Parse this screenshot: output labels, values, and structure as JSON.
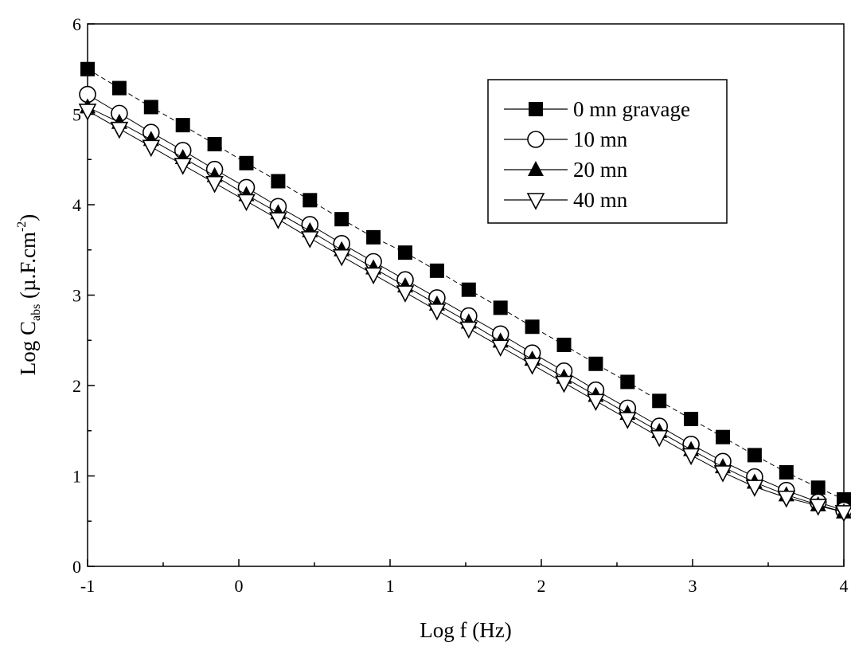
{
  "chart_data": {
    "type": "scatter",
    "xlabel": "Log f (Hz)",
    "ylabel": {
      "prefix": "Log C",
      "subscript": "abs",
      "unit_open": " (µ.F.cm",
      "superscript": "-2",
      "unit_close": ")"
    },
    "xlim": [
      -1,
      4
    ],
    "ylim": [
      0,
      6
    ],
    "x_ticks": [
      -1,
      0,
      1,
      2,
      3,
      4
    ],
    "x_tick_labels": [
      "-1",
      "0",
      "1",
      "2",
      "3",
      "4"
    ],
    "y_ticks": [
      0,
      1,
      2,
      3,
      4,
      5,
      6
    ],
    "y_tick_labels": [
      "0",
      "1",
      "2",
      "3",
      "4",
      "5",
      "6"
    ],
    "grid": false,
    "legend_position": "top-right",
    "x": [
      -1.0,
      -0.79,
      -0.58,
      -0.37,
      -0.16,
      0.05,
      0.26,
      0.47,
      0.68,
      0.89,
      1.1,
      1.31,
      1.52,
      1.73,
      1.94,
      2.15,
      2.36,
      2.57,
      2.78,
      2.99,
      3.2,
      3.41,
      3.62,
      3.83,
      4.0
    ],
    "series": [
      {
        "name": "0 mn gravage",
        "marker": "filled-square",
        "values": [
          5.5,
          5.29,
          5.08,
          4.88,
          4.67,
          4.46,
          4.26,
          4.05,
          3.84,
          3.64,
          3.47,
          3.27,
          3.06,
          2.86,
          2.65,
          2.45,
          2.24,
          2.04,
          1.83,
          1.63,
          1.43,
          1.23,
          1.04,
          0.87,
          0.74
        ]
      },
      {
        "name": "10 mn",
        "marker": "open-circle",
        "values": [
          5.22,
          5.01,
          4.8,
          4.6,
          4.39,
          4.19,
          3.98,
          3.78,
          3.57,
          3.37,
          3.17,
          2.97,
          2.77,
          2.57,
          2.36,
          2.16,
          1.95,
          1.75,
          1.55,
          1.35,
          1.16,
          0.99,
          0.84,
          0.71,
          0.62
        ]
      },
      {
        "name": "20 mn",
        "marker": "filled-triangle-up",
        "values": [
          5.08,
          4.91,
          4.72,
          4.52,
          4.32,
          4.11,
          3.91,
          3.71,
          3.5,
          3.3,
          3.1,
          2.9,
          2.7,
          2.49,
          2.29,
          2.09,
          1.89,
          1.69,
          1.49,
          1.29,
          1.1,
          0.93,
          0.79,
          0.68,
          0.6
        ]
      },
      {
        "name": "40 mn",
        "marker": "open-triangle-down",
        "values": [
          5.04,
          4.84,
          4.64,
          4.44,
          4.24,
          4.04,
          3.84,
          3.63,
          3.43,
          3.23,
          3.03,
          2.83,
          2.63,
          2.43,
          2.23,
          2.03,
          1.83,
          1.63,
          1.43,
          1.23,
          1.04,
          0.88,
          0.76,
          0.67,
          0.6
        ]
      }
    ]
  }
}
